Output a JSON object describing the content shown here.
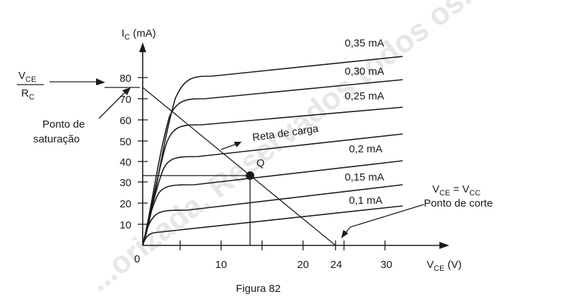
{
  "figure_caption": "Figura 82",
  "watermark": "...orizada. Reservados todos os...",
  "y_axis": {
    "symbol": "I",
    "sub": "C",
    "unit": " (mA)",
    "ticks": [
      "10",
      "20",
      "30",
      "40",
      "50",
      "60",
      "70",
      "80"
    ]
  },
  "x_axis": {
    "symbol": "V",
    "sub": "CE",
    "unit": " (V)",
    "ticks": [
      "10",
      "20",
      "24",
      "30"
    ],
    "origin": "0"
  },
  "curves": [
    "0,35 mA",
    "0,30 mA",
    "0,25 mA",
    "0,2 mA",
    "0,15 mA",
    "0,1 mA"
  ],
  "saturation": {
    "fraction_num": "V",
    "fraction_num_sub": "CE",
    "fraction_den": "R",
    "fraction_den_sub": "C",
    "label_line1": "Ponto de",
    "label_line2": "saturação"
  },
  "load_line_label": "Reta de carga",
  "q_point_label": "Q",
  "cutoff": {
    "eq_left": "V",
    "eq_left_sub": "CE",
    "eq_mid": " = V",
    "eq_right_sub": "CC",
    "label": "Ponto de corte"
  },
  "colors": {
    "ink": "#1a1a1a",
    "watermark": "#d4d4d4"
  }
}
